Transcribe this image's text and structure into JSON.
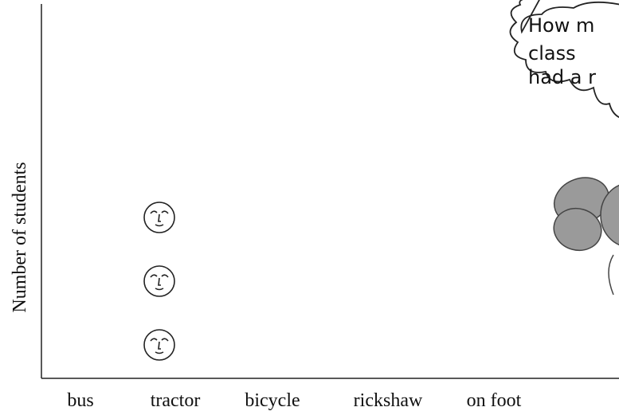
{
  "chart_data": {
    "type": "pictograph",
    "y_label": "Number of students",
    "categories": [
      "bus",
      "tractor",
      "bicycle",
      "rickshaw",
      "on foot"
    ],
    "values": [
      0,
      3,
      0,
      0,
      0
    ],
    "annotations": [
      "How m",
      "class",
      "had a r"
    ]
  }
}
